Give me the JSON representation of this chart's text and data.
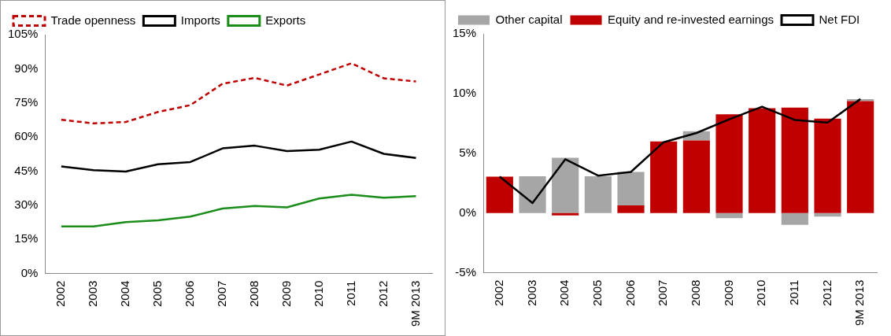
{
  "chart_data": [
    {
      "type": "line",
      "categories": [
        "2002",
        "2003",
        "2004",
        "2005",
        "2006",
        "2007",
        "2008",
        "2009",
        "2010",
        "2011",
        "2012",
        "9M 2013"
      ],
      "series": [
        {
          "name": "Trade openness",
          "color": "#c00000",
          "line_style": "dashed",
          "values": [
            67.6,
            66,
            66.6,
            71,
            74,
            83.4,
            86,
            82.6,
            87.5,
            92.4,
            85.8,
            84.4
          ]
        },
        {
          "name": "Imports",
          "color": "#000000",
          "values": [
            47.1,
            45.4,
            44.8,
            48,
            49,
            55,
            56.2,
            53.8,
            54.4,
            58,
            52.6,
            50.8
          ]
        },
        {
          "name": "Exports",
          "color": "#1a8c1a",
          "values": [
            20.7,
            20.7,
            22.6,
            23.4,
            25,
            28.6,
            29.7,
            29.1,
            33,
            34.6,
            33.3,
            34
          ]
        }
      ],
      "ylim": [
        0,
        105
      ],
      "yticks": [
        {
          "value": 0,
          "label": "0%"
        },
        {
          "value": 15,
          "label": "15%"
        },
        {
          "value": 30,
          "label": "30%"
        },
        {
          "value": 45,
          "label": "45%"
        },
        {
          "value": 60,
          "label": "60%"
        },
        {
          "value": 75,
          "label": "75%"
        },
        {
          "value": 90,
          "label": "90%"
        },
        {
          "value": 105,
          "label": "105%"
        }
      ],
      "grid": false,
      "legend": "top",
      "marker": "none"
    },
    {
      "type": "bar",
      "stacked": true,
      "categories": [
        "2002",
        "2003",
        "2004",
        "2005",
        "2006",
        "2007",
        "2008",
        "2009",
        "2010",
        "2011",
        "2012",
        "9M 2013"
      ],
      "series": [
        {
          "name": "Equity and re-invested earnings",
          "color": "#c00000",
          "values": [
            3.05,
            0,
            -0.2,
            0,
            0.64,
            6.0,
            6.08,
            8.27,
            8.78,
            8.83,
            7.91,
            9.36
          ]
        },
        {
          "name": "Other capital",
          "color": "#a6a6a6",
          "values": [
            0,
            3.08,
            4.63,
            3.08,
            2.8,
            0,
            0.77,
            -0.43,
            null,
            -0.99,
            -0.3,
            0.18
          ]
        },
        {
          "name": "Net FDI",
          "type": "line",
          "color": "#000000",
          "values": [
            3.05,
            0.84,
            4.5,
            3.13,
            3.44,
            5.93,
            6.7,
            7.84,
            8.9,
            7.79,
            7.58,
            9.54
          ]
        }
      ],
      "ylim": [
        -5,
        15
      ],
      "yticks": [
        {
          "value": -5,
          "label": "-5%"
        },
        {
          "value": 0,
          "label": "0%"
        },
        {
          "value": 5,
          "label": "5%"
        },
        {
          "value": 10,
          "label": "10%"
        },
        {
          "value": 15,
          "label": "15%"
        }
      ],
      "grid": false,
      "legend": "top",
      "marker": "none"
    }
  ]
}
